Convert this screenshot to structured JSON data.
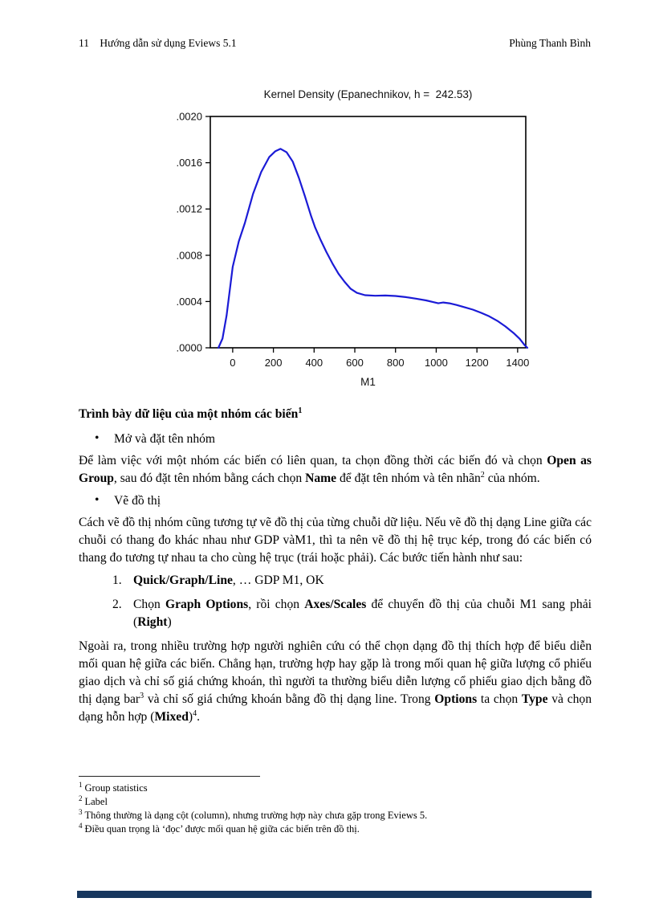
{
  "header": {
    "page_number": "11",
    "doc_title": "Hướng dẫn sử dụng Eviews 5.1",
    "author": "Phùng Thanh Bình"
  },
  "chart_data": {
    "type": "line",
    "title": "Kernel Density (Epanechnikov, h =  242.53)",
    "xlabel": "M1",
    "ylabel": "",
    "grid": false,
    "legend": "none",
    "xlim": [
      -110,
      1440
    ],
    "ylim": [
      0,
      0.002
    ],
    "x_ticks": [
      0,
      200,
      400,
      600,
      800,
      1000,
      1200,
      1400
    ],
    "y_ticks": [
      {
        "v": 0.0,
        "label": ".0000"
      },
      {
        "v": 0.0004,
        "label": ".0004"
      },
      {
        "v": 0.0008,
        "label": ".0008"
      },
      {
        "v": 0.0012,
        "label": ".0012"
      },
      {
        "v": 0.0016,
        "label": ".0016"
      },
      {
        "v": 0.002,
        "label": ".0020"
      }
    ],
    "series": [
      {
        "name": "Kernel density of M1",
        "color": "#1b1bd6",
        "points": [
          [
            -70,
            0
          ],
          [
            -50,
            8e-05
          ],
          [
            -30,
            0.00028
          ],
          [
            0,
            0.0007
          ],
          [
            30,
            0.00092
          ],
          [
            60,
            0.00108
          ],
          [
            100,
            0.00133
          ],
          [
            140,
            0.00152
          ],
          [
            180,
            0.00165
          ],
          [
            210,
            0.0017
          ],
          [
            235,
            0.00172
          ],
          [
            265,
            0.00169
          ],
          [
            295,
            0.00161
          ],
          [
            325,
            0.00147
          ],
          [
            355,
            0.00131
          ],
          [
            385,
            0.00114
          ],
          [
            405,
            0.00104
          ],
          [
            430,
            0.00094
          ],
          [
            460,
            0.00083
          ],
          [
            490,
            0.00073
          ],
          [
            520,
            0.00064
          ],
          [
            550,
            0.00057
          ],
          [
            580,
            0.00051
          ],
          [
            610,
            0.000475
          ],
          [
            650,
            0.000455
          ],
          [
            700,
            0.00045
          ],
          [
            750,
            0.000452
          ],
          [
            800,
            0.000448
          ],
          [
            850,
            0.000438
          ],
          [
            900,
            0.000425
          ],
          [
            950,
            0.00041
          ],
          [
            985,
            0.000395
          ],
          [
            1010,
            0.000385
          ],
          [
            1035,
            0.000392
          ],
          [
            1065,
            0.000385
          ],
          [
            1100,
            0.00037
          ],
          [
            1140,
            0.00035
          ],
          [
            1180,
            0.00033
          ],
          [
            1220,
            0.000303
          ],
          [
            1260,
            0.000272
          ],
          [
            1300,
            0.000233
          ],
          [
            1340,
            0.000185
          ],
          [
            1380,
            0.000128
          ],
          [
            1410,
            7.8e-05
          ],
          [
            1435,
            2.2e-05
          ],
          [
            1448,
            0
          ]
        ]
      }
    ]
  },
  "content": {
    "bullet_char": "•",
    "heading": [
      {
        "t": "Trình bày dữ liệu của một nhóm các biến"
      },
      {
        "t": "1",
        "sup": true
      }
    ],
    "bullet1": "Mở và đặt tên nhóm",
    "para1": [
      {
        "t": "Để làm việc với một nhóm các biến có liên quan, ta chọn đồng thời các biến đó và chọn "
      },
      {
        "t": "Open as Group",
        "b": true
      },
      {
        "t": ", sau đó đặt tên nhóm bằng cách chọn "
      },
      {
        "t": "Name",
        "b": true
      },
      {
        "t": " để đặt tên nhóm và tên nhãn"
      },
      {
        "t": "2",
        "sup": true
      },
      {
        "t": " của nhóm."
      }
    ],
    "bullet2": "Vẽ đồ thị",
    "para2": [
      {
        "t": "Cách vẽ đồ thị nhóm cũng tương tự vẽ đồ thị của từng chuỗi dữ liệu. Nếu vẽ đồ thị dạng Line giữa các chuỗi có thang đo khác nhau như GDP vàM1, thì ta nên vẽ đồ thị hệ trục kép, trong đó các biến có thang đo tương tự nhau ta cho cùng hệ trục (trái hoặc phải). Các bước tiến hành như sau:"
      }
    ],
    "list": [
      {
        "num": "1.",
        "segments": [
          {
            "t": "Quick/Graph/Line",
            "b": true
          },
          {
            "t": ", … GDP M1, OK"
          }
        ]
      },
      {
        "num": "2.",
        "segments": [
          {
            "t": "Chọn "
          },
          {
            "t": "Graph Options",
            "b": true
          },
          {
            "t": ", rồi chọn "
          },
          {
            "t": "Axes/Scales",
            "b": true
          },
          {
            "t": " để chuyển đồ thị của chuỗi M1 sang phải ("
          },
          {
            "t": "Right",
            "b": true
          },
          {
            "t": ")"
          }
        ]
      }
    ],
    "para3": [
      {
        "t": "Ngoài ra, trong nhiều trường hợp người nghiên cứu có thể chọn dạng đồ thị thích hợp để biểu diễn mối quan hệ giữa các biến. Chẳng hạn, trường hợp hay gặp là trong mối quan hệ giữa lượng cổ phiếu giao dịch và chỉ số giá chứng khoán, thì người ta thường biểu diễn lượng cổ phiếu giao dịch bằng đồ thị dạng bar"
      },
      {
        "t": "3",
        "sup": true
      },
      {
        "t": " và chỉ số giá chứng khoán bằng đồ thị dạng line. Trong "
      },
      {
        "t": "Options",
        "b": true
      },
      {
        "t": " ta chọn "
      },
      {
        "t": "Type",
        "b": true
      },
      {
        "t": " và chọn dạng hỗn hợp ("
      },
      {
        "t": "Mixed",
        "b": true
      },
      {
        "t": ")"
      },
      {
        "t": "4",
        "sup": true
      },
      {
        "t": "."
      }
    ]
  },
  "footnotes": [
    {
      "ref": "1",
      "text": "Group statistics"
    },
    {
      "ref": "2",
      "text": "Label"
    },
    {
      "ref": "3",
      "text": "Thông thường là dạng cột (column), nhưng trường hợp này chưa gặp trong Eviews 5."
    },
    {
      "ref": "4",
      "text": "Điều quan trọng là ‘đọc’ được mối quan hệ giữa các biến trên đồ thị."
    }
  ],
  "colors": {
    "curve": "#1b1bd6",
    "axis": "#000000",
    "bottom_bar": "#17375e"
  }
}
